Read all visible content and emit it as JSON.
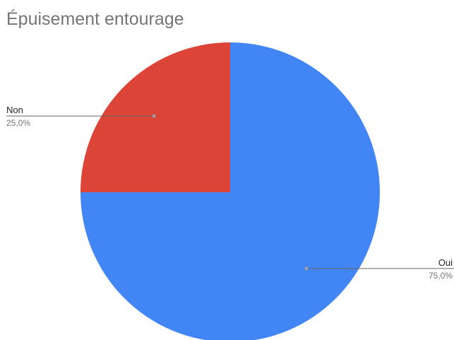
{
  "chart_data": {
    "type": "pie",
    "title": "Épuisement entourage",
    "categories": [
      "Oui",
      "Non"
    ],
    "values": [
      75.0,
      25.0
    ],
    "percent_labels": [
      "75,0%",
      "25,0%"
    ],
    "colors": [
      "#4285f4",
      "#db4437"
    ],
    "legend": "none"
  }
}
